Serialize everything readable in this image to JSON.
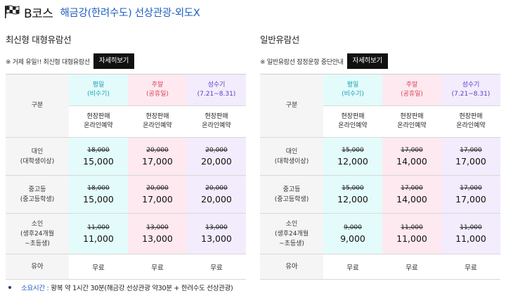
{
  "header": {
    "course": "B코스",
    "route": "해금강(한려수도) 선상관광-외도X"
  },
  "panels": [
    {
      "title": "최신형 대형유람선",
      "notice": "※ 거제 유일!! 최신형 대형유람선",
      "button": "자세히보기",
      "col0_header": "구분",
      "cols": [
        {
          "line1": "평일",
          "line2": "(비수기)"
        },
        {
          "line1": "주말",
          "line2": "(공휴일)"
        },
        {
          "line1": "성수기",
          "line2": "(7.21~8.31)"
        }
      ],
      "sale_line1": "현장판매",
      "sale_line2": "온라인예약",
      "rows": [
        {
          "label1": "대인",
          "label2": "(대학생이상)",
          "label3": "",
          "cells": [
            {
              "old": "18,000",
              "new": "15,000"
            },
            {
              "old": "20,000",
              "new": "17,000"
            },
            {
              "old": "20,000",
              "new": "20,000"
            }
          ]
        },
        {
          "label1": "중고등",
          "label2": "(중고등학생)",
          "label3": "",
          "cells": [
            {
              "old": "18,000",
              "new": "15,000"
            },
            {
              "old": "20,000",
              "new": "17,000"
            },
            {
              "old": "20,000",
              "new": "20,000"
            }
          ]
        },
        {
          "label1": "소인",
          "label2": "(생후24개월",
          "label3": "~초등생)",
          "cells": [
            {
              "old": "11,000",
              "new": "11,000"
            },
            {
              "old": "13,000",
              "new": "13,000"
            },
            {
              "old": "13,000",
              "new": "13,000"
            }
          ]
        }
      ],
      "infant": {
        "label": "유아",
        "value": "무료"
      }
    },
    {
      "title": "일반유람선",
      "notice": "※ 일반유람선 잠정운항 중단안내",
      "button": "자세히보기",
      "col0_header": "구분",
      "cols": [
        {
          "line1": "평일",
          "line2": "(비수기)"
        },
        {
          "line1": "주말",
          "line2": "(공휴일)"
        },
        {
          "line1": "성수기",
          "line2": "(7.21~8.31)"
        }
      ],
      "sale_line1": "현장판매",
      "sale_line2": "온라인예약",
      "rows": [
        {
          "label1": "대인",
          "label2": "(대학생이상)",
          "label3": "",
          "cells": [
            {
              "old": "15,000",
              "new": "12,000"
            },
            {
              "old": "17,000",
              "new": "14,000"
            },
            {
              "old": "17,000",
              "new": "17,000"
            }
          ]
        },
        {
          "label1": "중고등",
          "label2": "(중고등학생)",
          "label3": "",
          "cells": [
            {
              "old": "15,000",
              "new": "12,000"
            },
            {
              "old": "17,000",
              "new": "14,000"
            },
            {
              "old": "17,000",
              "new": "17,000"
            }
          ]
        },
        {
          "label1": "소인",
          "label2": "(생후24개월",
          "label3": "~초등생)",
          "cells": [
            {
              "old": "9,000",
              "new": "9,000"
            },
            {
              "old": "11,000",
              "new": "11,000"
            },
            {
              "old": "11,000",
              "new": "11,000"
            }
          ]
        }
      ],
      "infant": {
        "label": "유아",
        "value": "무료"
      }
    }
  ],
  "footer": {
    "label": "소요시간 :",
    "text": "왕복 약 1시간 30분(해금강 선상관광 약30분 + 한려수도 선상관광)"
  },
  "colors": {
    "route": "#1f5fbf",
    "weekday_bg": "#e4fbfb",
    "weekend_bg": "#fde9ef",
    "peak_bg": "#f2ecfc",
    "weekday_text": "#13a3b5",
    "weekend_text": "#d8455e",
    "peak_text": "#5b3cc4"
  }
}
